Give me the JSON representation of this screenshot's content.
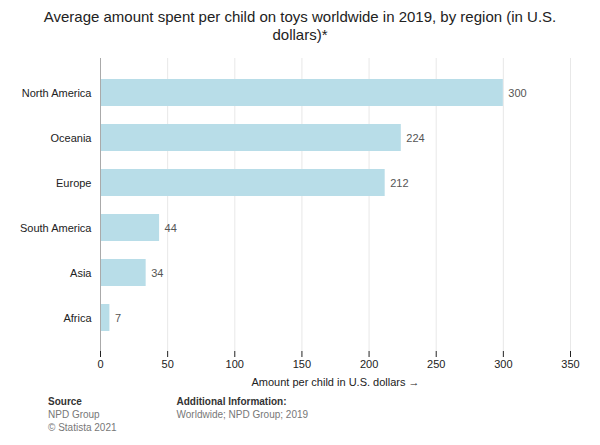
{
  "chart_data": {
    "type": "bar",
    "orientation": "horizontal",
    "title": "Average amount spent per child on toys worldwide in 2019, by region (in U.S.\ndollars)*",
    "categories": [
      "North America",
      "Oceania",
      "Europe",
      "South America",
      "Asia",
      "Africa"
    ],
    "values": [
      300,
      224,
      212,
      44,
      34,
      7
    ],
    "color": "#b8dde8",
    "xlabel": "Amount per child in U.S. dollars",
    "xlim": [
      0,
      350
    ],
    "xticks": [
      0,
      50,
      100,
      150,
      200,
      250,
      300,
      350
    ],
    "grid": true,
    "data_labels": true,
    "annotations": [
      {
        "title": "Source",
        "text": [
          "NPD Group",
          "© Statista 2021"
        ]
      },
      {
        "title": "Additional Information:",
        "text": [
          "Worldwide; NPD Group; 2019"
        ]
      }
    ]
  }
}
